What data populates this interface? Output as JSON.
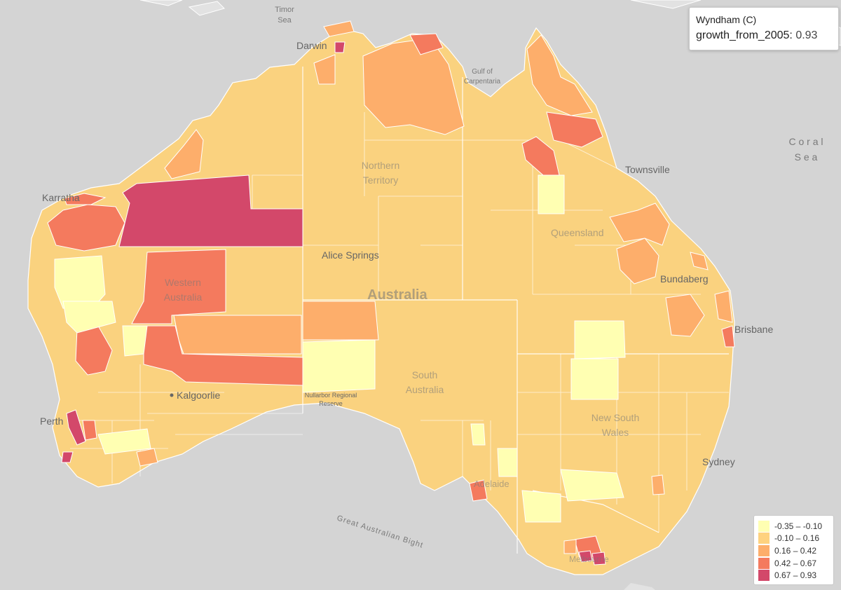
{
  "colors": {
    "ocean": "#d4d4d4",
    "land": "#fad27f",
    "bin1": "#ffffb2",
    "bin2": "#fed27f",
    "bin3": "#fdae6b",
    "bin4": "#f47a5e",
    "bin5": "#d3486a"
  },
  "labels": {
    "timor_sea": [
      "Timor",
      "Sea"
    ],
    "darwin": "Darwin",
    "gulf": [
      "Gulf of",
      "Carpentaria"
    ],
    "coral_sea": [
      "C o r a l",
      "S e a"
    ],
    "townsville": "Townsville",
    "karratha": "Karratha",
    "northern_territory": [
      "Northern",
      "Territory"
    ],
    "queensland": "Queensland",
    "alice_springs": "Alice Springs",
    "western_australia": [
      "Western",
      "Australia"
    ],
    "bundaberg": "Bundaberg",
    "australia": "Australia",
    "brisbane": "Brisbane",
    "kalgoorlie": "Kalgoorlie",
    "south_australia": [
      "South",
      "Australia"
    ],
    "nullarbor": [
      "Nullarbor Regional",
      "Reserve"
    ],
    "perth": "Perth",
    "new_south_wales": [
      "New South",
      "Wales"
    ],
    "sydney": "Sydney",
    "adelaide": "Adelaide",
    "bight": "Great Australian Bight",
    "melbourne": "Melbourne"
  },
  "tooltip": {
    "name": "Wyndham (C)",
    "field": "growth_from_2005",
    "value": "0.93"
  },
  "legend": [
    {
      "label": "-0.35 – -0.10",
      "color": "#ffffb2"
    },
    {
      "label": "-0.10 – 0.16",
      "color": "#fed27f"
    },
    {
      "label": "0.16 – 0.42",
      "color": "#fdae6b"
    },
    {
      "label": "0.42 – 0.67",
      "color": "#f47a5e"
    },
    {
      "label": "0.67 – 0.93",
      "color": "#d3486a"
    }
  ]
}
